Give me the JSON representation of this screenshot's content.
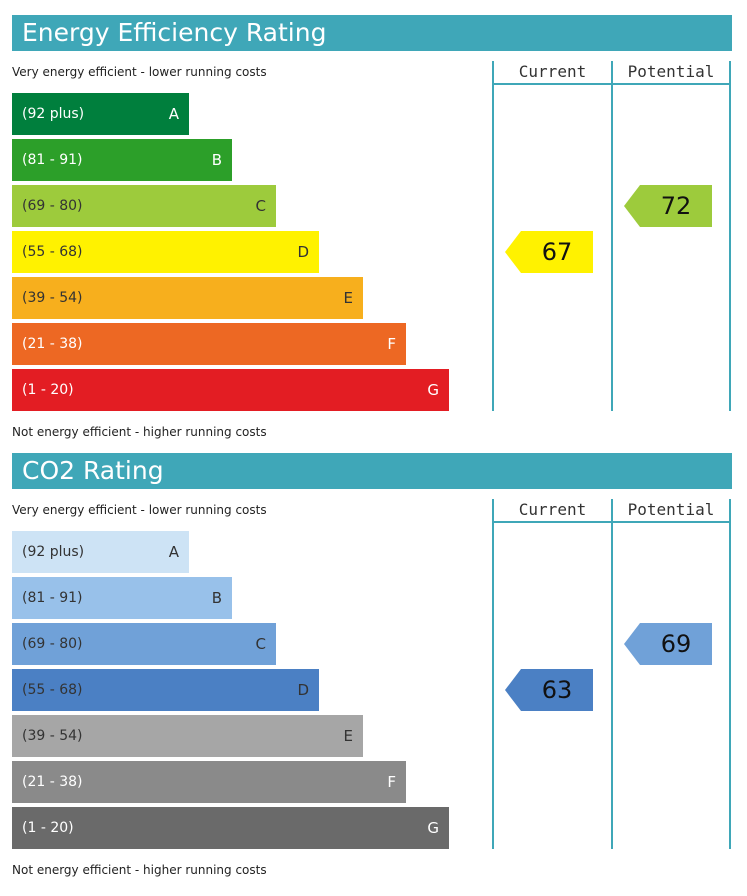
{
  "chart_data": [
    {
      "type": "bar",
      "title": "Energy Efficiency Rating",
      "top_note": "Very energy efficient - lower running costs",
      "bottom_note": "Not energy efficient - higher running costs",
      "columns": [
        "Current",
        "Potential"
      ],
      "bands": [
        {
          "range": "(92 plus)",
          "letter": "A",
          "color": "#007f3d",
          "text_color": "#ffffff"
        },
        {
          "range": "(81 - 91)",
          "letter": "B",
          "color": "#2c9f29",
          "text_color": "#ffffff"
        },
        {
          "range": "(69 - 80)",
          "letter": "C",
          "color": "#9dcb3c",
          "text_color": "#333333"
        },
        {
          "range": "(55 - 68)",
          "letter": "D",
          "color": "#fff200",
          "text_color": "#333333"
        },
        {
          "range": "(39 - 54)",
          "letter": "E",
          "color": "#f7af1d",
          "text_color": "#333333"
        },
        {
          "range": "(21 - 38)",
          "letter": "F",
          "color": "#ed6823",
          "text_color": "#ffffff"
        },
        {
          "range": "(1 - 20)",
          "letter": "G",
          "color": "#e31d23",
          "text_color": "#ffffff"
        }
      ],
      "current": {
        "value": 67,
        "band": "D",
        "color": "#fff200"
      },
      "potential": {
        "value": 72,
        "band": "C",
        "color": "#9dcb3c"
      }
    },
    {
      "type": "bar",
      "title": "CO2 Rating",
      "top_note": "Very energy efficient - lower running costs",
      "bottom_note": "Not energy efficient - higher running costs",
      "columns": [
        "Current",
        "Potential"
      ],
      "bands": [
        {
          "range": "(92 plus)",
          "letter": "A",
          "color": "#cde3f5",
          "text_color": "#333333"
        },
        {
          "range": "(81 - 91)",
          "letter": "B",
          "color": "#98c1ea",
          "text_color": "#333333"
        },
        {
          "range": "(69 - 80)",
          "letter": "C",
          "color": "#70a1d8",
          "text_color": "#333333"
        },
        {
          "range": "(55 - 68)",
          "letter": "D",
          "color": "#4b80c4",
          "text_color": "#333333"
        },
        {
          "range": "(39 - 54)",
          "letter": "E",
          "color": "#a6a6a6",
          "text_color": "#333333"
        },
        {
          "range": "(21 - 38)",
          "letter": "F",
          "color": "#8a8a8a",
          "text_color": "#ffffff"
        },
        {
          "range": "(1 - 20)",
          "letter": "G",
          "color": "#6a6a6a",
          "text_color": "#ffffff"
        }
      ],
      "current": {
        "value": 63,
        "band": "D",
        "color": "#4b80c4"
      },
      "potential": {
        "value": 69,
        "band": "C",
        "color": "#70a1d8"
      }
    }
  ]
}
